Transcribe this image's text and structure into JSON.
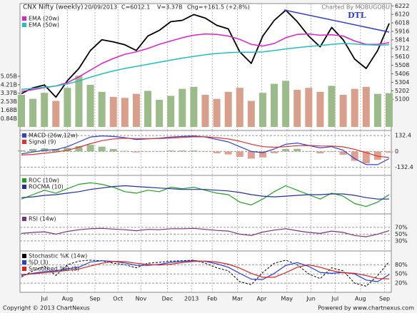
{
  "chart_data": [
    {
      "type": "line",
      "title": "CNX Nifty (weekly)",
      "annotations": [
        "20/09/2013",
        "C=6012.1",
        "V=3.37B",
        "Chg=+161.5 (+2.8%)"
      ],
      "credit": "Charted By MOBUGOBU",
      "trendline_label": "DTL",
      "ylim": [
        4725,
        6250
      ],
      "yticks": [
        6222,
        6120,
        6018,
        5916,
        5814,
        5712,
        5610,
        5508,
        5406,
        5304,
        5202,
        5100
      ],
      "y2lim": [
        -0.35,
        12.3
      ],
      "y2ticks": [
        {
          "value": 5.05,
          "label": "5.05B"
        },
        {
          "value": 4.21,
          "label": "4.21B"
        },
        {
          "value": 3.37,
          "label": "3.37B"
        },
        {
          "value": 2.53,
          "label": "2.53B"
        },
        {
          "value": 1.68,
          "label": "1.68B"
        },
        {
          "value": 0.84,
          "label": "0.84B"
        }
      ],
      "series": [
        {
          "type": "bar",
          "axis": "y2",
          "up_color": "#9bbb8a",
          "down_color": "#d8a08c",
          "values": [
            3.2,
            2.8,
            3.4,
            2.6,
            3.9,
            5.1,
            4.2,
            3.5,
            3.0,
            2.9,
            3.3,
            3.6,
            2.7,
            3.1,
            3.8,
            4.0,
            3.2,
            2.8,
            3.5,
            3.9,
            2.6,
            3.4,
            4.3,
            4.6,
            3.7,
            3.9,
            3.5,
            4.1,
            3.2,
            3.8,
            4.0,
            3.3,
            3.37
          ]
        },
        {
          "color": "#000000",
          "width": 1.8,
          "values": [
            5168,
            5237,
            5272,
            5125,
            5324,
            5470,
            5686,
            5816,
            5790,
            5755,
            5686,
            5859,
            5928,
            6032,
            6049,
            6118,
            6075,
            5989,
            5946,
            5669,
            5531,
            5859,
            6049,
            6170,
            6032,
            5859,
            5730,
            5963,
            5816,
            5583,
            5470,
            5686,
            6012
          ]
        },
        {
          "name": "EMA (20w)",
          "color": "#e020c8",
          "width": 1.5,
          "values": [
            5195,
            5215,
            5240,
            5260,
            5300,
            5370,
            5450,
            5530,
            5590,
            5640,
            5670,
            5710,
            5760,
            5800,
            5840,
            5870,
            5885,
            5880,
            5860,
            5820,
            5760,
            5740,
            5770,
            5840,
            5880,
            5885,
            5870,
            5875,
            5860,
            5800,
            5760,
            5760,
            5780
          ]
        },
        {
          "name": "EMA (50w)",
          "color": "#20c0c0",
          "width": 1.5,
          "values": [
            5220,
            5230,
            5245,
            5260,
            5285,
            5320,
            5365,
            5405,
            5440,
            5470,
            5495,
            5520,
            5545,
            5570,
            5595,
            5615,
            5635,
            5650,
            5660,
            5665,
            5665,
            5670,
            5685,
            5705,
            5720,
            5735,
            5745,
            5760,
            5770,
            5765,
            5755,
            5750,
            5755
          ]
        }
      ]
    },
    {
      "type": "line",
      "ylim": [
        -200,
        175
      ],
      "yticks": [
        132.4,
        0,
        -132.4
      ],
      "grid": true,
      "series": [
        {
          "type": "bar",
          "pos_color": "#9bbb8a",
          "neg_color": "#e0a090",
          "values": [
            10,
            20,
            25,
            20,
            30,
            45,
            55,
            40,
            20,
            5,
            -8,
            -2,
            2,
            8,
            8,
            8,
            -2,
            -15,
            -25,
            -45,
            -60,
            -50,
            -15,
            20,
            22,
            0,
            -16,
            -5,
            -28,
            -78,
            -100,
            -70,
            -10
          ]
        },
        {
          "name": "MACD (26w,12w)",
          "color": "#3040d0",
          "width": 1.2,
          "values": [
            -20,
            -5,
            10,
            15,
            40,
            80,
            120,
            130,
            125,
            115,
            100,
            105,
            110,
            120,
            125,
            130,
            120,
            100,
            80,
            40,
            0,
            -10,
            20,
            60,
            70,
            50,
            30,
            40,
            10,
            -60,
            -110,
            -110,
            -60
          ]
        },
        {
          "name": "Signal (9)",
          "color": "#e03030",
          "width": 1.2,
          "values": [
            -30,
            -25,
            -15,
            -5,
            10,
            35,
            65,
            90,
            105,
            110,
            108,
            107,
            108,
            112,
            117,
            122,
            122,
            115,
            105,
            85,
            60,
            40,
            35,
            40,
            48,
            50,
            46,
            45,
            38,
            18,
            -10,
            -40,
            -50
          ]
        }
      ]
    },
    {
      "type": "line",
      "ylim": [
        -12,
        14
      ],
      "series": [
        {
          "name": "ROC (10w)",
          "color": "#20a020",
          "width": 1.2,
          "values": [
            -2,
            1,
            4,
            2,
            5,
            8,
            9,
            8,
            6,
            3,
            2,
            4,
            3,
            6,
            5,
            6,
            4,
            2,
            1,
            -4,
            -6,
            -2,
            3,
            7,
            4,
            1,
            -2,
            2,
            0,
            -5,
            -7,
            -4,
            1
          ]
        },
        {
          "name": "ROCMA (10)",
          "color": "#2030a0",
          "width": 1.2,
          "values": [
            -1,
            -0.5,
            0.5,
            1,
            2,
            3,
            4.5,
            5.5,
            6.5,
            7,
            6.5,
            6,
            5.5,
            5,
            4.5,
            4.5,
            4.5,
            4,
            3.5,
            2.5,
            1,
            0,
            -0.5,
            0,
            0.5,
            1,
            1,
            1.5,
            1.5,
            0.5,
            -1,
            -2,
            -2
          ]
        }
      ]
    },
    {
      "type": "line",
      "ylim": [
        0,
        110
      ],
      "grid": true,
      "yticks": [
        {
          "value": 70,
          "label": "70%"
        },
        {
          "value": 50,
          "label": "50%"
        },
        {
          "value": 30,
          "label": "30%"
        }
      ],
      "series": [
        {
          "name": "RSI (14w)",
          "color": "#803080",
          "width": 1.2,
          "values": [
            52,
            55,
            57,
            50,
            58,
            63,
            66,
            67,
            65,
            63,
            60,
            64,
            63,
            66,
            66,
            67,
            64,
            61,
            59,
            50,
            46,
            56,
            62,
            66,
            60,
            55,
            52,
            59,
            55,
            46,
            42,
            50,
            60
          ]
        }
      ]
    },
    {
      "type": "line",
      "ylim": [
        -10,
        125
      ],
      "grid": true,
      "yticks": [
        {
          "value": 80,
          "label": "80%"
        },
        {
          "value": 50,
          "label": "50%"
        },
        {
          "value": 20,
          "label": "20%"
        }
      ],
      "xlim": [
        0,
        32
      ],
      "xticks": [
        {
          "value": 2.0,
          "label": "Jul"
        },
        {
          "value": 4.0,
          "label": "Aug"
        },
        {
          "value": 6.4,
          "label": "Sep"
        },
        {
          "value": 8.4,
          "label": "Oct"
        },
        {
          "value": 10.4,
          "label": "Nov"
        },
        {
          "value": 12.7,
          "label": "Dec"
        },
        {
          "value": 14.8,
          "label": "2013"
        },
        {
          "value": 16.6,
          "label": "Feb"
        },
        {
          "value": 18.8,
          "label": "Mar"
        },
        {
          "value": 20.9,
          "label": "Apr"
        },
        {
          "value": 23.1,
          "label": "May"
        },
        {
          "value": 25.2,
          "label": "Jun"
        },
        {
          "value": 27.3,
          "label": "Jul"
        },
        {
          "value": 29.5,
          "label": "Aug"
        },
        {
          "value": 31.6,
          "label": "Sep"
        }
      ],
      "series": [
        {
          "name": "Stochastic %K (14w)",
          "color": "#000000",
          "width": 1,
          "dash": true,
          "values": [
            40,
            60,
            75,
            45,
            80,
            92,
            95,
            93,
            85,
            80,
            70,
            85,
            88,
            92,
            93,
            95,
            85,
            70,
            60,
            25,
            15,
            55,
            85,
            95,
            80,
            50,
            35,
            70,
            60,
            20,
            10,
            45,
            90
          ]
        },
        {
          "name": "%D (3)",
          "color": "#2040e0",
          "width": 1.2,
          "values": [
            45,
            52,
            58,
            60,
            67,
            72,
            89,
            93,
            91,
            86,
            78,
            78,
            81,
            88,
            91,
            93,
            91,
            83,
            72,
            52,
            33,
            32,
            52,
            78,
            87,
            75,
            55,
            52,
            55,
            50,
            30,
            25,
            48
          ]
        },
        {
          "name": "Smoothed %D (3)",
          "color": "#e02020",
          "width": 1.2,
          "values": [
            48,
            50,
            54,
            57,
            62,
            66,
            76,
            85,
            91,
            90,
            85,
            81,
            79,
            82,
            87,
            91,
            92,
            89,
            82,
            69,
            52,
            39,
            39,
            54,
            72,
            80,
            72,
            61,
            54,
            52,
            45,
            35,
            34
          ]
        }
      ]
    }
  ],
  "footer": {
    "copyright": "Copyright © 2013 ChartNexus",
    "powered": "Powered by www.chartnexus.com"
  }
}
